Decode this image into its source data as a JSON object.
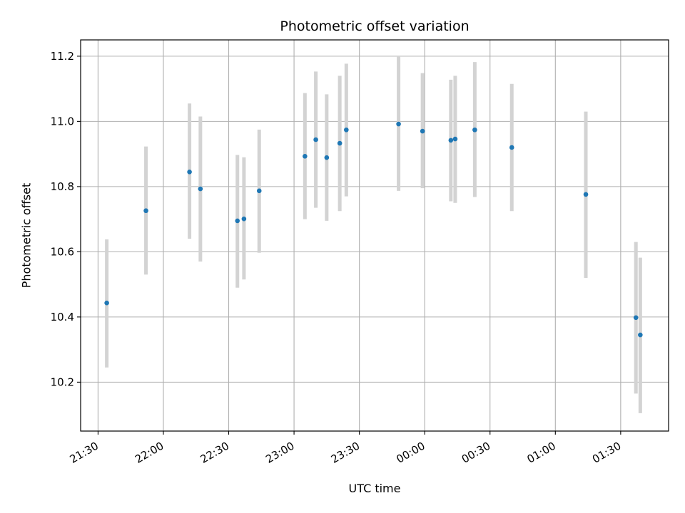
{
  "chart_data": {
    "type": "scatter",
    "title": "Photometric offset variation",
    "xlabel": "UTC time",
    "ylabel": "Photometric offset",
    "grid": true,
    "x_format": "HH:MM",
    "xlim": [
      "21:22",
      "01:52"
    ],
    "ylim": [
      10.05,
      11.25
    ],
    "x_ticks": [
      "21:30",
      "22:00",
      "22:30",
      "23:00",
      "23:30",
      "00:00",
      "00:30",
      "01:00",
      "01:30"
    ],
    "y_ticks": [
      10.2,
      10.4,
      10.6,
      10.8,
      11.0,
      11.2
    ],
    "y_tick_labels": [
      "10.2",
      "10.4",
      "10.6",
      "10.8",
      "11.0",
      "11.2"
    ],
    "colors": {
      "point": "#1f77b4",
      "errorbar": "#d3d3d3",
      "grid": "#b0b0b0"
    },
    "series": [
      {
        "points": [
          {
            "x": "21:34",
            "y": 10.443,
            "err_low": 10.245,
            "err_high": 10.638
          },
          {
            "x": "21:52",
            "y": 10.726,
            "err_low": 10.53,
            "err_high": 10.923
          },
          {
            "x": "22:12",
            "y": 10.845,
            "err_low": 10.64,
            "err_high": 11.055
          },
          {
            "x": "22:17",
            "y": 10.793,
            "err_low": 10.57,
            "err_high": 11.015
          },
          {
            "x": "22:34",
            "y": 10.695,
            "err_low": 10.49,
            "err_high": 10.897
          },
          {
            "x": "22:37",
            "y": 10.701,
            "err_low": 10.515,
            "err_high": 10.89
          },
          {
            "x": "22:44",
            "y": 10.787,
            "err_low": 10.597,
            "err_high": 10.975
          },
          {
            "x": "23:05",
            "y": 10.893,
            "err_low": 10.7,
            "err_high": 11.087
          },
          {
            "x": "23:10",
            "y": 10.944,
            "err_low": 10.735,
            "err_high": 11.153
          },
          {
            "x": "23:15",
            "y": 10.889,
            "err_low": 10.695,
            "err_high": 11.083
          },
          {
            "x": "23:21",
            "y": 10.933,
            "err_low": 10.725,
            "err_high": 11.14
          },
          {
            "x": "23:24",
            "y": 10.974,
            "err_low": 10.77,
            "err_high": 11.177
          },
          {
            "x": "23:48",
            "y": 10.992,
            "err_low": 10.787,
            "err_high": 11.198
          },
          {
            "x": "23:59",
            "y": 10.97,
            "err_low": 10.795,
            "err_high": 11.148
          },
          {
            "x": "00:12",
            "y": 10.942,
            "err_low": 10.755,
            "err_high": 11.128
          },
          {
            "x": "00:14",
            "y": 10.946,
            "err_low": 10.75,
            "err_high": 11.14
          },
          {
            "x": "00:23",
            "y": 10.974,
            "err_low": 10.768,
            "err_high": 11.182
          },
          {
            "x": "00:40",
            "y": 10.92,
            "err_low": 10.725,
            "err_high": 11.115
          },
          {
            "x": "01:14",
            "y": 10.776,
            "err_low": 10.52,
            "err_high": 11.03
          },
          {
            "x": "01:37",
            "y": 10.398,
            "err_low": 10.165,
            "err_high": 10.63
          },
          {
            "x": "01:39",
            "y": 10.345,
            "err_low": 10.105,
            "err_high": 10.582
          }
        ]
      }
    ]
  }
}
